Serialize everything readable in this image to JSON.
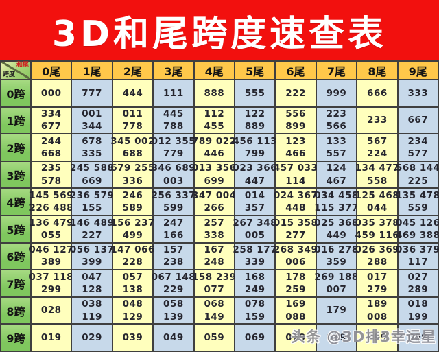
{
  "title": "3D和尾跨度速查表",
  "corner": {
    "top_right": "和尾",
    "bottom_left": "跨度"
  },
  "columns": [
    "0尾",
    "1尾",
    "2尾",
    "3尾",
    "4尾",
    "5尾",
    "6尾",
    "7尾",
    "8尾",
    "9尾"
  ],
  "rows": [
    {
      "label": "0跨",
      "cells": [
        [
          "000"
        ],
        [
          "777"
        ],
        [
          "444"
        ],
        [
          "111"
        ],
        [
          "888"
        ],
        [
          "555"
        ],
        [
          "222"
        ],
        [
          "999"
        ],
        [
          "666"
        ],
        [
          "333"
        ]
      ]
    },
    {
      "label": "1跨",
      "cells": [
        [
          "334",
          "677"
        ],
        [
          "001",
          "344"
        ],
        [
          "011",
          "778"
        ],
        [
          "445",
          "788"
        ],
        [
          "112",
          "455"
        ],
        [
          "122",
          "889"
        ],
        [
          "556",
          "899"
        ],
        [
          "223",
          "566"
        ],
        [
          "233"
        ],
        [
          "667"
        ]
      ]
    },
    {
      "label": "2跨",
      "cells": [
        [
          "244",
          "668"
        ],
        [
          "678",
          "335"
        ],
        [
          "345 002",
          "688"
        ],
        [
          "012 355",
          "779"
        ],
        [
          "789 022",
          "446"
        ],
        [
          "456 113",
          "799"
        ],
        [
          "123",
          "466"
        ],
        [
          "133",
          "557"
        ],
        [
          "567",
          "224"
        ],
        [
          "234",
          "577"
        ]
      ]
    },
    {
      "label": "3跨",
      "cells": [
        [
          "235",
          "578"
        ],
        [
          "245 588",
          "669"
        ],
        [
          "679 255",
          "336"
        ],
        [
          "346 689",
          "003"
        ],
        [
          "013 356",
          "699"
        ],
        [
          "023 366",
          "447"
        ],
        [
          "457 033",
          "114"
        ],
        [
          "124",
          "467"
        ],
        [
          "134 477",
          "558"
        ],
        [
          "568 144",
          "225"
        ]
      ]
    },
    {
      "label": "4跨",
      "cells": [
        [
          "145 569",
          "226 488"
        ],
        [
          "236 579",
          "155"
        ],
        [
          "246",
          "589"
        ],
        [
          "256 337",
          "599"
        ],
        [
          "347 004",
          "266"
        ],
        [
          "014",
          "357"
        ],
        [
          "024 367",
          "448"
        ],
        [
          "034 458",
          "115 377"
        ],
        [
          "125 468",
          "044"
        ],
        [
          "135 478",
          "559"
        ]
      ]
    },
    {
      "label": "5跨",
      "cells": [
        [
          "136 479",
          "055"
        ],
        [
          "146 489",
          "227"
        ],
        [
          "156 237",
          "499"
        ],
        [
          "247",
          "166"
        ],
        [
          "257",
          "338"
        ],
        [
          "267 348",
          "005"
        ],
        [
          "015 358",
          "277"
        ],
        [
          "025 368",
          "449"
        ],
        [
          "035 378",
          "459 116"
        ],
        [
          "045 126",
          "469 388"
        ]
      ]
    },
    {
      "label": "6跨",
      "cells": [
        [
          "046 127",
          "389"
        ],
        [
          "056 137",
          "399"
        ],
        [
          "147 066",
          "228"
        ],
        [
          "157",
          "238"
        ],
        [
          "167",
          "248"
        ],
        [
          "258 177",
          "339"
        ],
        [
          "268 349",
          "006"
        ],
        [
          "016 278",
          "359"
        ],
        [
          "026 369",
          "288"
        ],
        [
          "036 379",
          "117"
        ]
      ]
    },
    {
      "label": "7跨",
      "cells": [
        [
          "037 118",
          "299"
        ],
        [
          "047",
          "128"
        ],
        [
          "057",
          "138"
        ],
        [
          "067 148",
          "229"
        ],
        [
          "158 239",
          "077"
        ],
        [
          "168",
          "249"
        ],
        [
          "178",
          "259"
        ],
        [
          "269 188",
          "007"
        ],
        [
          "017",
          "279"
        ],
        [
          "027",
          "289"
        ]
      ]
    },
    {
      "label": "8跨",
      "cells": [
        [
          "028"
        ],
        [
          "038",
          "119"
        ],
        [
          "048",
          "129"
        ],
        [
          "058",
          "139"
        ],
        [
          "068",
          "149"
        ],
        [
          "078",
          "159"
        ],
        [
          "169",
          "088"
        ],
        [
          "179"
        ],
        [
          "189",
          "008"
        ],
        [
          "018",
          "199"
        ]
      ]
    },
    {
      "label": "9跨",
      "cells": [
        [
          "019"
        ],
        [
          "029"
        ],
        [
          "039"
        ],
        [
          "049"
        ],
        [
          "059"
        ],
        [
          "069"
        ],
        [
          "079"
        ],
        [
          "089"
        ],
        [
          "099"
        ],
        [
          "009"
        ]
      ]
    }
  ],
  "watermark": "头条 @3D排3幸运星",
  "colors": {
    "banner-red": "#f2100e",
    "header-orange": "#ffc84a",
    "header-green": "#7fc75e",
    "cell-yellow": "#ffffbd",
    "cell-blue": "#c7d9ea",
    "grid-line": "#3f3f3f"
  }
}
